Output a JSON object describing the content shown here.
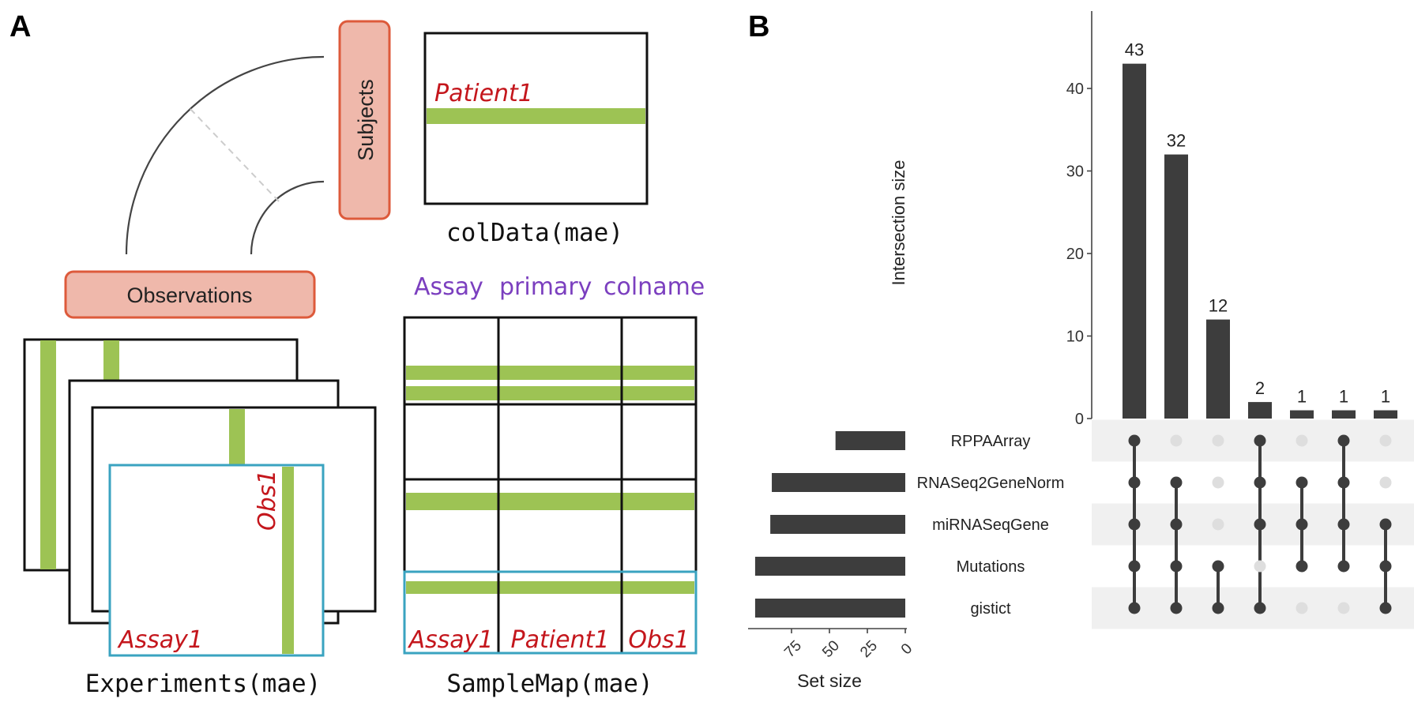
{
  "panel_a": {
    "label": "A",
    "subjects_label": "Subjects",
    "observations_label": "Observations",
    "coldata_patient": "Patient1",
    "coldata_caption": "colData(mae)",
    "samplemap_header": {
      "assay": "Assay",
      "primary": "primary",
      "colname": "colname"
    },
    "samplemap_row": {
      "assay": "Assay1",
      "primary": "Patient1",
      "colname": "Obs1"
    },
    "experiment_assay": "Assay1",
    "experiment_obs": "Obs1",
    "experiments_caption": "Experiments(mae)",
    "samplemap_caption": "SampleMap(mae)",
    "colors": {
      "green": "#9dc354",
      "salmon": "#efb8ab",
      "salmon_border": "#dd5a3b",
      "teal": "#3aa3c0",
      "red_text": "#c4161c",
      "purple_text": "#7b3fbf"
    }
  },
  "panel_b": {
    "label": "B",
    "colors": {
      "bar": "#3d3d3d",
      "dot_on": "#3d3d3d",
      "dot_off": "#dedede",
      "stripe": "#f0f0f0"
    },
    "chart_data": {
      "type": "upset",
      "intersection_ylabel": "Intersection size",
      "intersection_yticks": [
        0,
        10,
        20,
        30,
        40
      ],
      "intersection_ylim": [
        0,
        48
      ],
      "intersections": [
        {
          "value": 43,
          "label": "43",
          "sets": [
            "RPPAArray",
            "RNASeq2GeneNorm",
            "miRNASeqGene",
            "Mutations",
            "gistict"
          ]
        },
        {
          "value": 32,
          "label": "32",
          "sets": [
            "RNASeq2GeneNorm",
            "miRNASeqGene",
            "Mutations",
            "gistict"
          ]
        },
        {
          "value": 12,
          "label": "12",
          "sets": [
            "Mutations",
            "gistict"
          ]
        },
        {
          "value": 2,
          "label": "2",
          "sets": [
            "RPPAArray",
            "RNASeq2GeneNorm",
            "miRNASeqGene",
            "gistict"
          ]
        },
        {
          "value": 1,
          "label": "1",
          "sets": [
            "RNASeq2GeneNorm",
            "miRNASeqGene",
            "Mutations"
          ]
        },
        {
          "value": 1,
          "label": "1",
          "sets": [
            "RPPAArray",
            "RNASeq2GeneNorm",
            "miRNASeqGene",
            "Mutations"
          ]
        },
        {
          "value": 1,
          "label": "1",
          "sets": [
            "miRNASeqGene",
            "Mutations",
            "gistict"
          ]
        }
      ],
      "sets": [
        {
          "name": "RPPAArray",
          "size": 46
        },
        {
          "name": "RNASeq2GeneNorm",
          "size": 88
        },
        {
          "name": "miRNASeqGene",
          "size": 89
        },
        {
          "name": "Mutations",
          "size": 99
        },
        {
          "name": "gistict",
          "size": 99
        }
      ],
      "set_size_xlabel": "Set size",
      "set_size_xticks": [
        "75",
        "50",
        "25",
        "0"
      ],
      "set_size_xtick_values": [
        75,
        50,
        25,
        0
      ]
    }
  }
}
